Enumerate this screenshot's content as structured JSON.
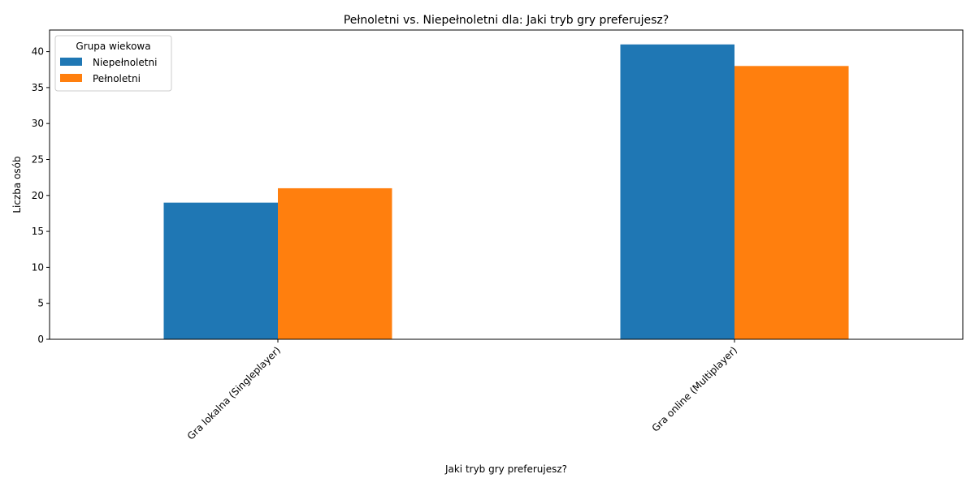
{
  "chart_data": {
    "type": "bar",
    "title": "Pełnoletni vs. Niepełnoletni dla: Jaki tryb gry preferujesz?",
    "xlabel": "Jaki tryb gry preferujesz?",
    "ylabel": "Liczba osób",
    "categories": [
      "Gra lokalna (Singleplayer)",
      "Gra online (Multiplayer)"
    ],
    "series": [
      {
        "name": "Niepełnoletni",
        "values": [
          19,
          41
        ],
        "color": "#1f77b4"
      },
      {
        "name": "Pełnoletni",
        "values": [
          21,
          38
        ],
        "color": "#ff7f0e"
      }
    ],
    "ylim": [
      0,
      43
    ],
    "yticks": [
      0,
      5,
      10,
      15,
      20,
      25,
      30,
      35,
      40
    ],
    "legend": {
      "title": "Grupa wiekowa",
      "placement": "top-left"
    },
    "grid": false
  }
}
